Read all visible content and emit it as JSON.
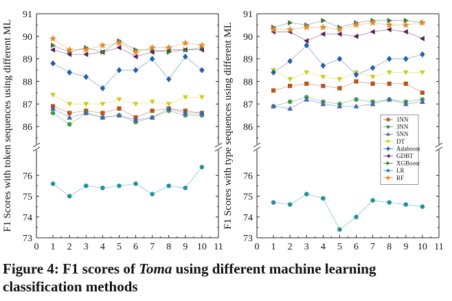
{
  "caption": {
    "prefix": "Figure 4: F1 scores of ",
    "emphasis": "Toma",
    "suffix": " using different machine learning classification methods"
  },
  "chart_data": [
    {
      "type": "line",
      "ylabel": "F1 Scores with token sequences using different ML",
      "xlabel": "",
      "xlim": [
        0,
        11
      ],
      "x_ticks": [
        0,
        1,
        2,
        3,
        4,
        5,
        6,
        7,
        8,
        9,
        10,
        11
      ],
      "y_ticks_upper": [
        86,
        87,
        88,
        89,
        90,
        91
      ],
      "y_ticks_lower": [
        73,
        74,
        75,
        76
      ],
      "axis_break": true,
      "grid": false,
      "x": [
        1,
        2,
        3,
        4,
        5,
        6,
        7,
        8,
        9,
        10
      ],
      "series": [
        {
          "name": "1NN",
          "color": "#b5541b",
          "marker": "square",
          "values": [
            86.9,
            86.6,
            86.7,
            86.6,
            86.8,
            86.4,
            86.7,
            86.8,
            86.7,
            86.6
          ]
        },
        {
          "name": "3NN",
          "color": "#3c9a48",
          "marker": "circle",
          "values": [
            86.6,
            86.1,
            86.6,
            86.4,
            86.5,
            86.2,
            86.4,
            86.7,
            86.5,
            86.5
          ]
        },
        {
          "name": "5NN",
          "color": "#4a5fb5",
          "marker": "triangle-up",
          "values": [
            86.8,
            86.4,
            86.6,
            86.4,
            86.5,
            86.3,
            86.4,
            86.8,
            86.6,
            86.6
          ]
        },
        {
          "name": "DT",
          "color": "#cccc1a",
          "marker": "triangle-down",
          "values": [
            87.4,
            87.0,
            87.0,
            87.0,
            87.2,
            87.0,
            87.1,
            87.0,
            87.3,
            87.3
          ]
        },
        {
          "name": "Adaboost",
          "color": "#1f5fae",
          "marker": "diamond",
          "values": [
            88.8,
            88.4,
            88.2,
            87.7,
            88.5,
            88.5,
            89.0,
            88.1,
            89.1,
            88.5
          ]
        },
        {
          "name": "GDBT",
          "color": "#5a1a55",
          "marker": "triangle-left",
          "values": [
            89.4,
            89.2,
            89.2,
            89.3,
            89.5,
            89.1,
            89.3,
            89.4,
            89.4,
            89.4
          ]
        },
        {
          "name": "XGBoost",
          "color": "#3f6b3a",
          "marker": "triangle-right",
          "values": [
            89.6,
            89.3,
            89.5,
            89.3,
            89.8,
            89.4,
            89.4,
            89.3,
            89.4,
            89.5
          ]
        },
        {
          "name": "LR",
          "color": "#24909a",
          "marker": "circle",
          "values": [
            75.6,
            75.0,
            75.5,
            75.4,
            75.5,
            75.6,
            75.1,
            75.5,
            75.4,
            76.4
          ]
        },
        {
          "name": "RF",
          "color": "#e58a2e",
          "marker": "star",
          "values": [
            89.9,
            89.4,
            89.4,
            89.6,
            89.7,
            89.3,
            89.5,
            89.5,
            89.7,
            89.6
          ]
        }
      ]
    },
    {
      "type": "line",
      "ylabel": "F1 Scores with type sequences using different ML",
      "xlabel": "",
      "xlim": [
        0,
        11
      ],
      "x_ticks": [
        0,
        1,
        2,
        3,
        4,
        5,
        6,
        7,
        8,
        9,
        10,
        11
      ],
      "y_ticks_upper": [
        86,
        87,
        88,
        89,
        90,
        91
      ],
      "y_ticks_lower": [
        73,
        74,
        75,
        76
      ],
      "axis_break": true,
      "grid": false,
      "legend_position": "right",
      "x": [
        1,
        2,
        3,
        4,
        5,
        6,
        7,
        8,
        9,
        10
      ],
      "series": [
        {
          "name": "1NN",
          "color": "#b5541b",
          "marker": "square",
          "values": [
            87.6,
            87.8,
            87.9,
            87.8,
            87.7,
            88.0,
            87.9,
            87.9,
            87.9,
            87.5
          ]
        },
        {
          "name": "3NN",
          "color": "#3c9a48",
          "marker": "circle",
          "values": [
            86.9,
            87.1,
            87.3,
            87.1,
            87.0,
            87.2,
            87.1,
            87.2,
            87.1,
            87.2
          ]
        },
        {
          "name": "5NN",
          "color": "#4a5fb5",
          "marker": "triangle-up",
          "values": [
            86.9,
            86.8,
            87.2,
            87.0,
            86.9,
            86.9,
            87.0,
            87.2,
            87.0,
            87.1
          ]
        },
        {
          "name": "DT",
          "color": "#cccc1a",
          "marker": "triangle-down",
          "values": [
            88.5,
            88.1,
            88.4,
            88.2,
            88.1,
            88.4,
            88.2,
            88.4,
            88.4,
            88.4
          ]
        },
        {
          "name": "Adaboost",
          "color": "#1f5fae",
          "marker": "diamond",
          "values": [
            88.4,
            88.9,
            89.6,
            88.7,
            89.0,
            88.3,
            88.6,
            89.0,
            89.0,
            89.2
          ]
        },
        {
          "name": "GDBT",
          "color": "#5a1a55",
          "marker": "triangle-left",
          "values": [
            90.2,
            90.2,
            89.8,
            90.1,
            90.1,
            90.0,
            90.2,
            90.3,
            90.2,
            89.9
          ]
        },
        {
          "name": "XGBoost",
          "color": "#3f6b3a",
          "marker": "triangle-right",
          "values": [
            90.4,
            90.6,
            90.5,
            90.7,
            90.4,
            90.6,
            90.7,
            90.7,
            90.7,
            90.6
          ]
        },
        {
          "name": "LR",
          "color": "#24909a",
          "marker": "circle",
          "values": [
            74.7,
            74.6,
            75.1,
            74.9,
            73.4,
            74.0,
            74.8,
            74.7,
            74.6,
            74.5
          ]
        },
        {
          "name": "RF",
          "color": "#e58a2e",
          "marker": "star",
          "values": [
            90.3,
            90.3,
            90.4,
            90.4,
            90.3,
            90.5,
            90.6,
            90.5,
            90.5,
            90.6
          ]
        }
      ]
    }
  ]
}
